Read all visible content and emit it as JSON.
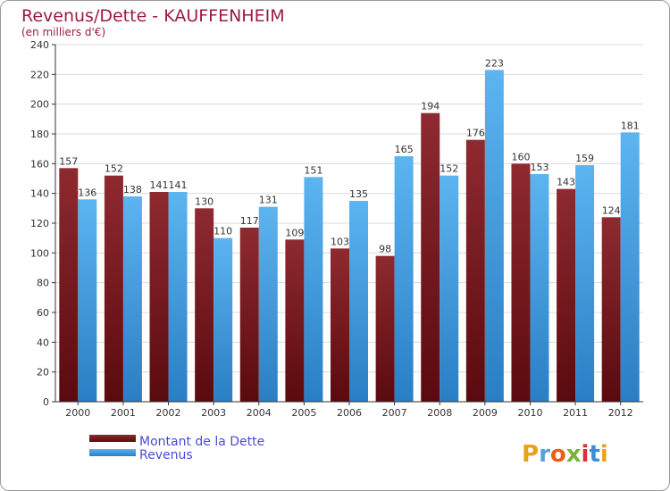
{
  "chart_data": {
    "type": "bar",
    "title": "Revenus/Dette - KAUFFENHEIM",
    "subtitle": "(en milliers d'€)",
    "categories": [
      "2000",
      "2001",
      "2002",
      "2003",
      "2004",
      "2005",
      "2006",
      "2007",
      "2008",
      "2009",
      "2010",
      "2011",
      "2012"
    ],
    "series": [
      {
        "name": "Montant de la Dette",
        "color": "#7a1a22",
        "values": [
          157,
          152,
          141,
          130,
          117,
          109,
          103,
          98,
          194,
          176,
          160,
          143,
          124
        ]
      },
      {
        "name": "Revenus",
        "color": "#3d9de0",
        "values": [
          136,
          138,
          141,
          110,
          131,
          151,
          135,
          165,
          152,
          223,
          153,
          159,
          181
        ]
      }
    ],
    "yticks": [
      "0",
      "20",
      "40",
      "60",
      "80",
      "100",
      "120",
      "140",
      "160",
      "180",
      "200",
      "220",
      "240"
    ],
    "ylim": [
      0,
      240
    ],
    "grid": true,
    "legend": "bottom-left",
    "logo": {
      "text": "Proxiti",
      "colors": [
        "#e8a21b",
        "#5aa0d6",
        "#e8601c",
        "#7ab23c",
        "#d6303a",
        "#3a8fd0",
        "#e8a21b"
      ]
    }
  }
}
